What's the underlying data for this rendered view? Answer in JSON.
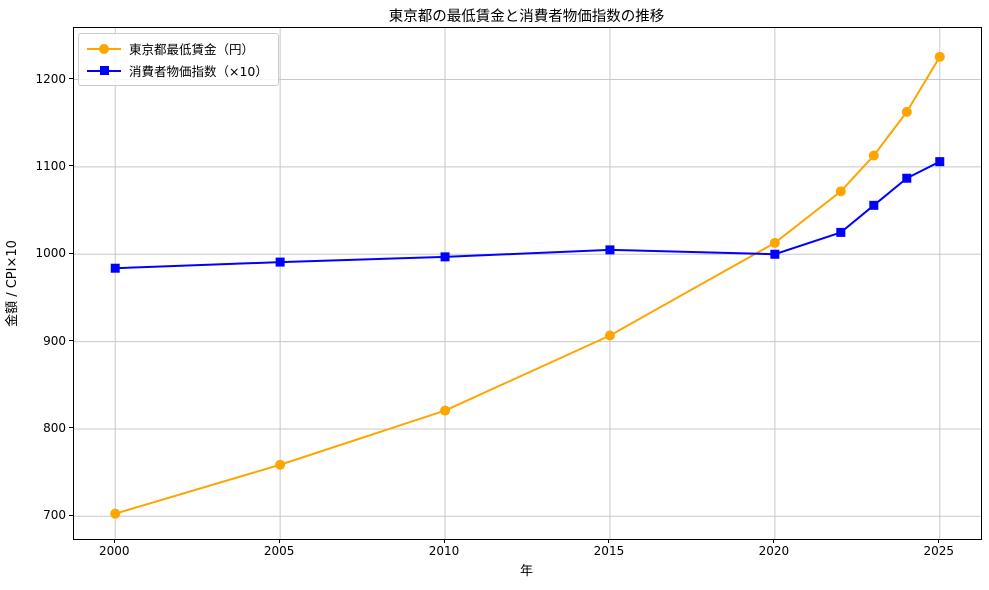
{
  "figure": {
    "title": "東京都の最低賃金と消費者物価指数の推移",
    "xlabel": "年",
    "ylabel": "金額 / CPI×10"
  },
  "chart_data": {
    "type": "line",
    "title": "東京都の最低賃金と消費者物価指数の推移",
    "xlabel": "年",
    "ylabel": "金額 / CPI×10",
    "x": [
      2000,
      2005,
      2010,
      2015,
      2020,
      2022,
      2023,
      2024,
      2025
    ],
    "series": [
      {
        "name": "東京都最低賃金（円）",
        "color": "#FFA500",
        "marker": "circle",
        "values": [
          703,
          759,
          821,
          907,
          1013,
          1072,
          1113,
          1163,
          1226
        ]
      },
      {
        "name": "消費者物価指数（×10）",
        "color": "#0000FF",
        "marker": "square",
        "values": [
          984,
          991,
          997,
          1005,
          1000,
          1025,
          1056,
          1087,
          1106
        ]
      }
    ],
    "x_ticks": [
      2000,
      2005,
      2010,
      2015,
      2020,
      2025
    ],
    "y_ticks": [
      700,
      800,
      900,
      1000,
      1100,
      1200
    ],
    "xlim": [
      1998.75,
      2026.25
    ],
    "ylim": [
      674,
      1259
    ],
    "grid": true,
    "grid_color": "#c8c8c8",
    "legend_position": "upper left"
  }
}
